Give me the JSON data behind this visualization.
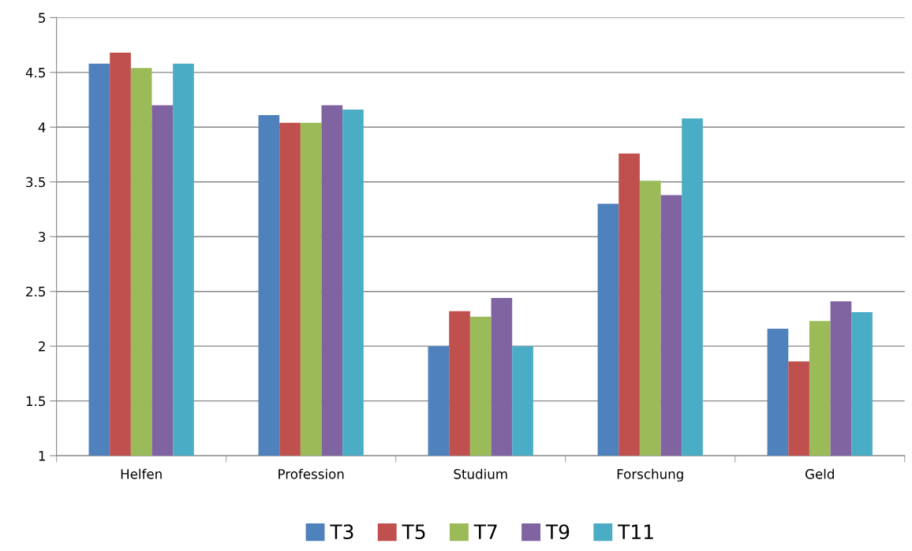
{
  "chart_data": {
    "type": "bar",
    "categories": [
      "Helfen",
      "Profession",
      "Studium",
      "Forschung",
      "Geld"
    ],
    "series": [
      {
        "name": "T3",
        "color": "#4f81bd",
        "values": [
          4.58,
          4.11,
          2.0,
          3.3,
          2.16
        ]
      },
      {
        "name": "T5",
        "color": "#c0504d",
        "values": [
          4.68,
          4.04,
          2.32,
          3.76,
          1.86
        ]
      },
      {
        "name": "T7",
        "color": "#9bbb59",
        "values": [
          4.54,
          4.04,
          2.27,
          3.51,
          2.23
        ]
      },
      {
        "name": "T9",
        "color": "#8064a2",
        "values": [
          4.2,
          4.2,
          2.44,
          3.38,
          2.41
        ]
      },
      {
        "name": "T11",
        "color": "#4bacc6",
        "values": [
          4.58,
          4.16,
          2.0,
          4.08,
          2.31
        ]
      }
    ],
    "ylim": [
      1,
      5
    ],
    "yticks": [
      1,
      1.5,
      2,
      2.5,
      3,
      3.5,
      4,
      4.5,
      5
    ],
    "grid": "y",
    "legend": "bottom"
  }
}
